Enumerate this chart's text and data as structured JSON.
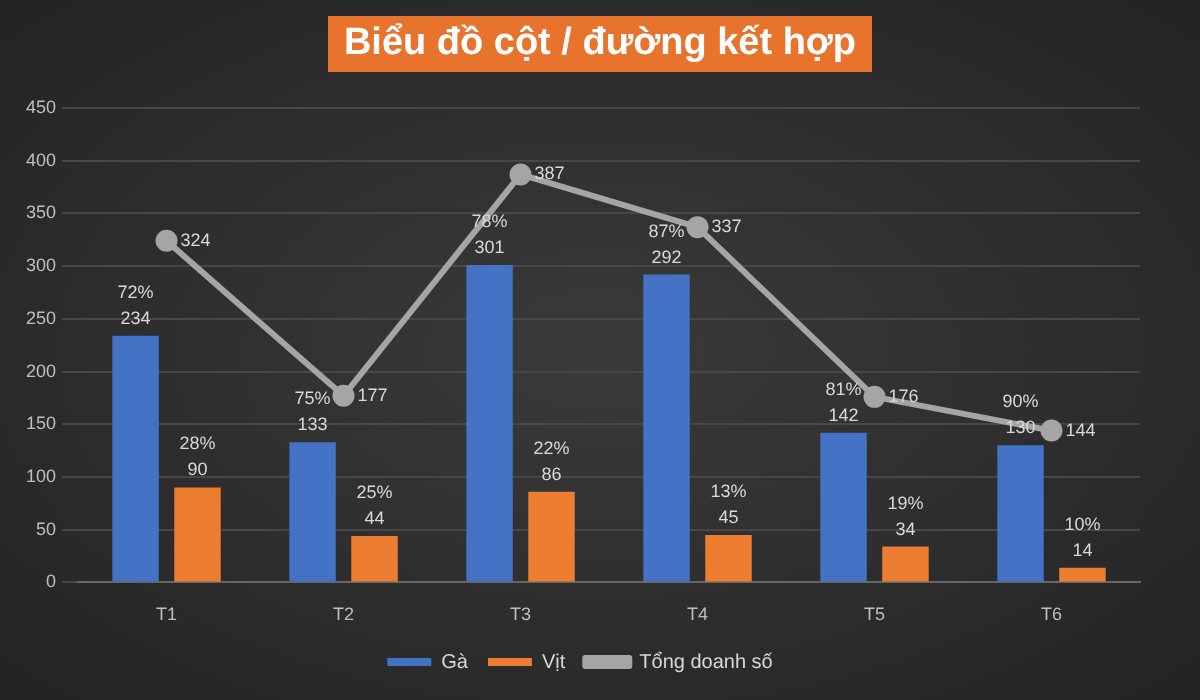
{
  "chart_data": {
    "type": "bar",
    "title": "Biểu đồ cột / đường kết hợp",
    "categories": [
      "T1",
      "T2",
      "T3",
      "T4",
      "T5",
      "T6"
    ],
    "series": [
      {
        "name": "Gà",
        "color": "#4472c4",
        "values": [
          234,
          133,
          301,
          292,
          142,
          130
        ],
        "value_labels": [
          "72%\n234",
          "75%\n133",
          "78%\n301",
          "87%\n292",
          "81%\n142",
          "90%\n130"
        ]
      },
      {
        "name": "Vịt",
        "color": "#ed7d31",
        "values": [
          90,
          44,
          86,
          45,
          34,
          14
        ],
        "value_labels": [
          "28%\n90",
          "25%\n44",
          "22%\n86",
          "13%\n45",
          "19%\n34",
          "10%\n14"
        ]
      },
      {
        "name": "Tổng doanh số",
        "type": "line",
        "color": "#a5a5a5",
        "values": [
          324,
          177,
          387,
          337,
          176,
          144
        ],
        "value_labels": [
          "324",
          "177",
          "387",
          "337",
          "176",
          "144"
        ]
      }
    ],
    "ylim": [
      0,
      450
    ],
    "yticks": [
      0,
      50,
      100,
      150,
      200,
      250,
      300,
      350,
      400,
      450
    ],
    "grid": "y",
    "legend": "bottom",
    "marker": "circle",
    "line_style": "solid"
  }
}
